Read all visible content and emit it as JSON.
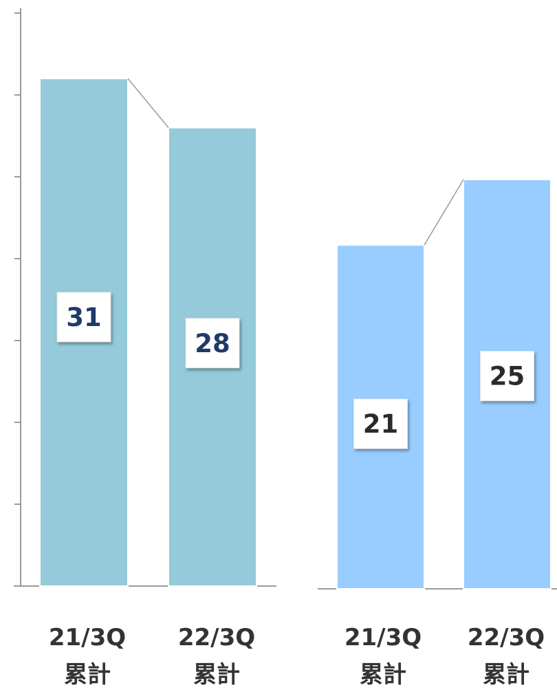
{
  "chart_data": [
    {
      "type": "bar",
      "categories": [
        "21/3Q\n累計",
        "22/3Q\n累計"
      ],
      "values": [
        31,
        28
      ],
      "ylim": [
        0,
        35
      ],
      "y_ticks": [
        0,
        5,
        10,
        15,
        20,
        25,
        30
      ],
      "bar_color": "#94cad9",
      "label_color": "#1f3a68"
    },
    {
      "type": "bar",
      "categories": [
        "21/3Q\n累計",
        "22/3Q\n累計"
      ],
      "values": [
        21,
        25
      ],
      "ylim": [
        0,
        35
      ],
      "bar_color": "#99ccff",
      "label_color": "#2b2b2b"
    }
  ]
}
